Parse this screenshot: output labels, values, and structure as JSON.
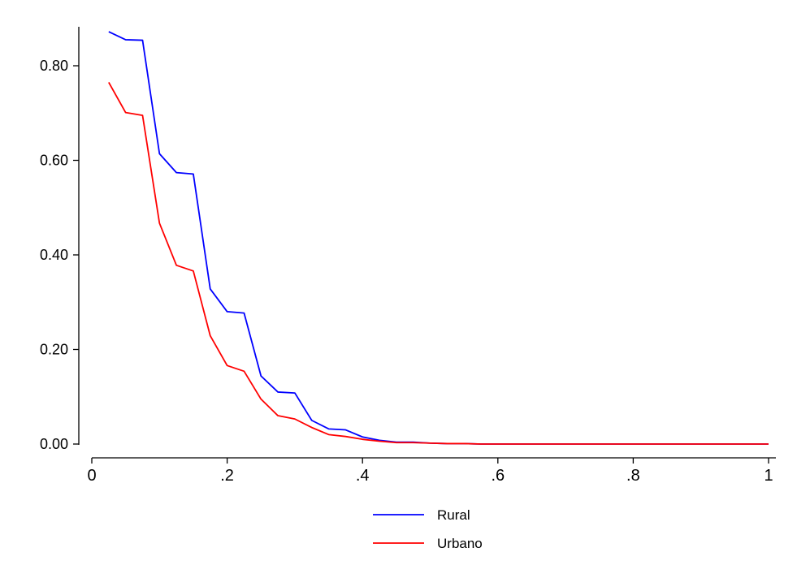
{
  "chart_data": {
    "type": "line",
    "title": "",
    "xlabel": "",
    "ylabel": "",
    "xlim": [
      0,
      1
    ],
    "ylim": [
      0,
      0.88
    ],
    "x_ticks": [
      {
        "value": 0,
        "label": "0"
      },
      {
        "value": 0.2,
        "label": ".2"
      },
      {
        "value": 0.4,
        "label": ".4"
      },
      {
        "value": 0.6,
        "label": ".6"
      },
      {
        "value": 0.8,
        "label": ".8"
      },
      {
        "value": 1,
        "label": "1"
      }
    ],
    "y_ticks": [
      {
        "value": 0,
        "label": "0.00"
      },
      {
        "value": 0.2,
        "label": "0.20"
      },
      {
        "value": 0.4,
        "label": "0.40"
      },
      {
        "value": 0.6,
        "label": "0.60"
      },
      {
        "value": 0.8,
        "label": "0.80"
      }
    ],
    "grid": false,
    "legend_position": "bottom",
    "x": [
      0.025,
      0.05,
      0.075,
      0.1,
      0.125,
      0.15,
      0.175,
      0.2,
      0.225,
      0.25,
      0.275,
      0.3,
      0.325,
      0.35,
      0.375,
      0.4,
      0.425,
      0.45,
      0.475,
      0.5,
      0.525,
      0.55,
      0.575,
      0.6,
      0.625,
      0.65,
      0.675,
      0.7,
      0.725,
      0.75,
      0.775,
      0.8,
      0.825,
      0.85,
      0.875,
      0.9,
      0.925,
      0.95,
      0.975,
      1.0
    ],
    "series": [
      {
        "name": "Rural",
        "color": "#0000ff",
        "values": [
          0.872,
          0.855,
          0.854,
          0.614,
          0.574,
          0.571,
          0.328,
          0.28,
          0.277,
          0.144,
          0.11,
          0.108,
          0.05,
          0.032,
          0.03,
          0.015,
          0.008,
          0.004,
          0.004,
          0.002,
          0.001,
          0.001,
          0.0,
          0.0,
          0.0,
          0.0,
          0.0,
          0.0,
          0.0,
          0.0,
          0.0,
          0.0,
          0.0,
          0.0,
          0.0,
          0.0,
          0.0,
          0.0,
          0.0,
          0.0
        ]
      },
      {
        "name": "Urbano",
        "color": "#ff0000",
        "values": [
          0.765,
          0.701,
          0.695,
          0.467,
          0.378,
          0.366,
          0.229,
          0.166,
          0.154,
          0.095,
          0.06,
          0.053,
          0.035,
          0.02,
          0.016,
          0.01,
          0.006,
          0.003,
          0.003,
          0.002,
          0.001,
          0.001,
          0.0,
          0.0,
          0.0,
          0.0,
          0.0,
          0.0,
          0.0,
          0.0,
          0.0,
          0.0,
          0.0,
          0.0,
          0.0,
          0.0,
          0.0,
          0.0,
          0.0,
          0.0
        ]
      }
    ]
  }
}
